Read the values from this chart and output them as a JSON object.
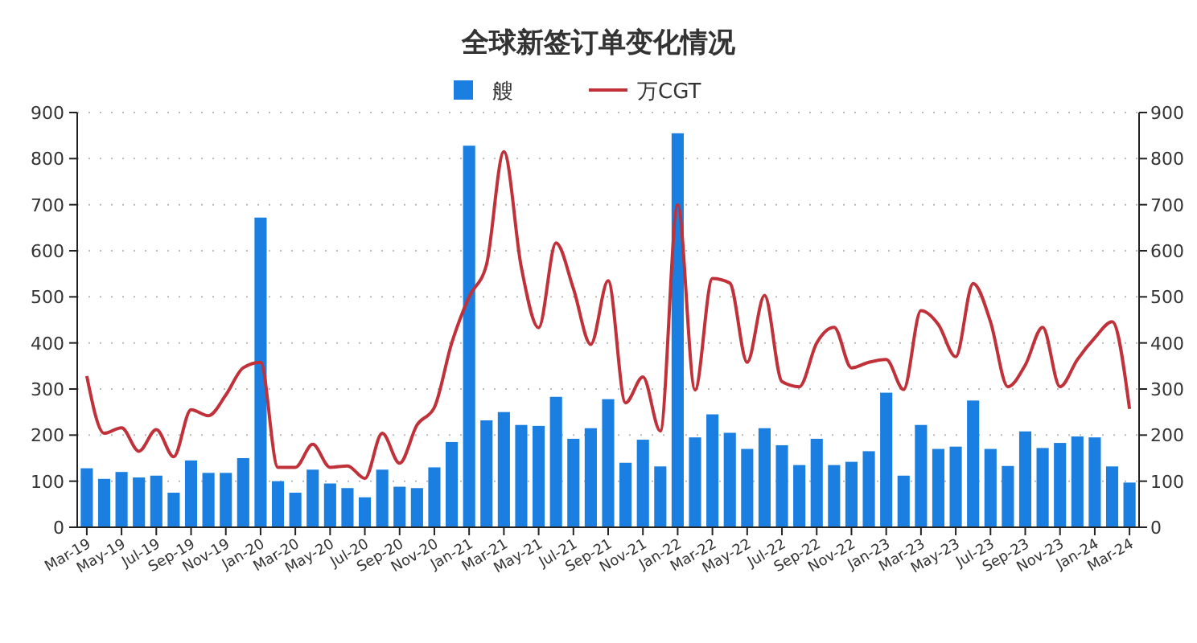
{
  "chart_data": {
    "type": "bar",
    "title": "全球新签订单变化情况",
    "categories": [
      "Mar-19",
      null,
      "May-19",
      null,
      "Jul-19",
      null,
      "Sep-19",
      null,
      "Nov-19",
      null,
      "Jan-20",
      null,
      "Mar-20",
      null,
      "May-20",
      null,
      "Jul-20",
      null,
      "Sep-20",
      null,
      "Nov-20",
      null,
      "Jan-21",
      null,
      "Mar-21",
      null,
      "May-21",
      null,
      "Jul-21",
      null,
      "Sep-21",
      null,
      "Nov-21",
      null,
      "Jan-22",
      null,
      "Mar-22",
      null,
      "May-22",
      null,
      "Jul-22",
      null,
      "Sep-22",
      null,
      "Nov-22",
      null,
      "Jan-23",
      null,
      "Mar-23",
      null,
      "May-23",
      null,
      "Jul-23",
      null,
      "Sep-23",
      null,
      "Nov-23",
      null,
      "Jan-24",
      null,
      "Mar-24"
    ],
    "series": [
      {
        "name": "艘",
        "color": "#1a7fe0",
        "values": [
          128,
          105,
          120,
          108,
          112,
          75,
          145,
          118,
          118,
          150,
          672,
          100,
          75,
          125,
          95,
          85,
          65,
          125,
          88,
          85,
          130,
          185,
          828,
          232,
          250,
          222,
          220,
          283,
          192,
          215,
          278,
          140,
          190,
          132,
          855,
          195,
          245,
          205,
          170,
          215,
          178,
          135,
          192,
          135,
          142,
          165,
          292,
          112,
          222,
          170,
          175,
          275,
          170,
          133,
          208,
          172,
          183,
          197,
          195,
          132,
          97
        ]
      },
      {
        "name": "万CGT",
        "type": "line",
        "color": "#c0313a",
        "values": [
          328,
          204,
          216,
          165,
          212,
          153,
          255,
          242,
          287,
          346,
          358,
          130,
          130,
          180,
          130,
          133,
          106,
          204,
          139,
          222,
          260,
          400,
          500,
          570,
          815,
          565,
          433,
          617,
          518,
          397,
          535,
          270,
          326,
          209,
          700,
          298,
          540,
          530,
          358,
          503,
          316,
          305,
          400,
          434,
          346,
          358,
          364,
          299,
          470,
          440,
          370,
          529,
          446,
          305,
          352,
          434,
          305,
          364,
          411,
          446,
          257
        ]
      }
    ],
    "ylim": [
      0,
      900
    ],
    "yticks": [
      0,
      100,
      200,
      300,
      400,
      500,
      600,
      700,
      800,
      900
    ],
    "y2lim": [
      0,
      900
    ],
    "y2ticks": [
      0,
      100,
      200,
      300,
      400,
      500,
      600,
      700,
      800,
      900
    ],
    "grid": "y",
    "legend": "top",
    "marker": "none",
    "line_style": "solid"
  }
}
